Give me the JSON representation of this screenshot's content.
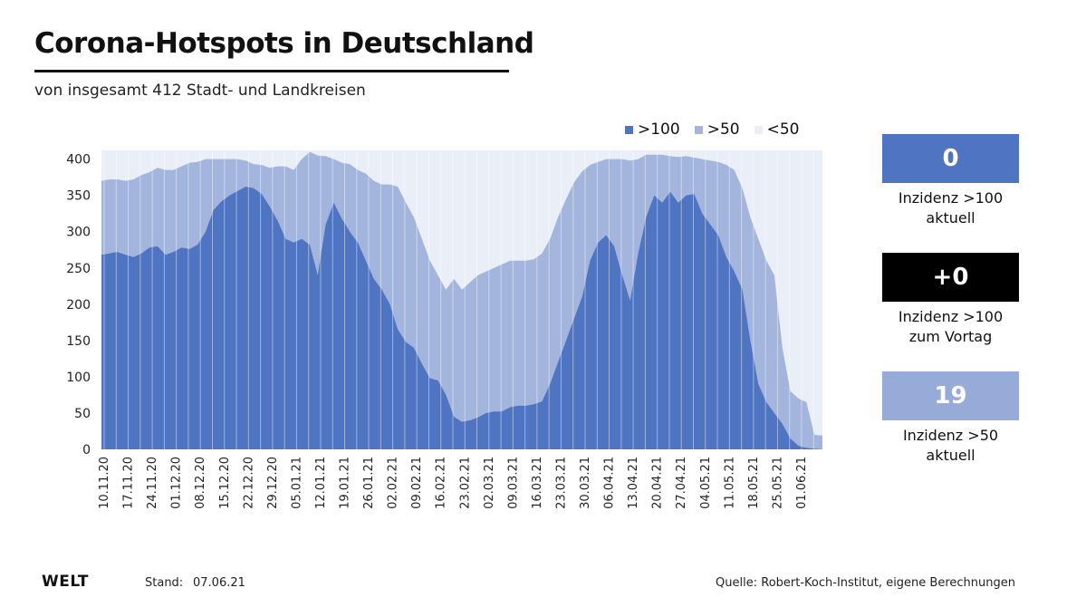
{
  "title": "Corona-Hotspots in Deutschland",
  "subtitle": "von insgesamt 412 Stadt- und Landkreisen",
  "legend": [
    {
      "label": ">100",
      "color": "#4f74c2"
    },
    {
      "label": ">50",
      "color": "#a3b5dd"
    },
    {
      "label": "<50",
      "color": "#eaeef6"
    }
  ],
  "kpis": [
    {
      "value": "0",
      "line1": "Inzidenz >100",
      "line2": "aktuell",
      "color": "#4f74c2"
    },
    {
      "value": "+0",
      "line1": "Inzidenz >100",
      "line2": "zum Vortag",
      "color": "#000000"
    },
    {
      "value": "19",
      "line1": "Inzidenz >50",
      "line2": "aktuell",
      "color": "#97abd9"
    }
  ],
  "footer": {
    "logo": "WELT",
    "stand_label": "Stand:",
    "stand_date": "07.06.21",
    "source": "Quelle: Robert-Koch-Institut, eigene Berechnungen"
  },
  "chart_data": {
    "type": "area",
    "stacked": false,
    "title": "Corona-Hotspots in Deutschland",
    "subtitle": "von insgesamt 412 Stadt- und Landkreisen",
    "ylim": [
      0,
      412
    ],
    "yticks": [
      0,
      50,
      100,
      150,
      200,
      250,
      300,
      350,
      400
    ],
    "grid": "vertical",
    "legend_position": "top-right",
    "total": 412,
    "x_tick_labels": [
      "10.11.20",
      "17.11.20",
      "24.11.20",
      "01.12.20",
      "08.12.20",
      "15.12.20",
      "22.12.20",
      "29.12.20",
      "05.01.21",
      "12.01.21",
      "19.01.21",
      "26.01.21",
      "02.02.21",
      "09.02.21",
      "16.02.21",
      "23.02.21",
      "02.03.21",
      "09.03.21",
      "16.03.21",
      "23.03.21",
      "30.03.21",
      "06.04.21",
      "13.04.21",
      "20.04.21",
      "27.04.21",
      "04.05.21",
      "11.05.21",
      "18.05.21",
      "25.05.21",
      "01.06.21"
    ],
    "series": [
      {
        "name": ">100",
        "color": "#4f74c2",
        "values": [
          268,
          270,
          272,
          268,
          265,
          270,
          278,
          280,
          268,
          272,
          278,
          276,
          282,
          300,
          330,
          342,
          350,
          356,
          362,
          360,
          352,
          335,
          315,
          290,
          285,
          290,
          282,
          240,
          310,
          340,
          318,
          300,
          285,
          260,
          235,
          220,
          200,
          165,
          148,
          140,
          118,
          98,
          95,
          75,
          45,
          38,
          40,
          44,
          50,
          52,
          52,
          58,
          60,
          60,
          62,
          66,
          90,
          120,
          150,
          180,
          210,
          260,
          285,
          295,
          280,
          240,
          205,
          270,
          320,
          350,
          340,
          355,
          340,
          350,
          352,
          325,
          310,
          295,
          265,
          245,
          220,
          150,
          90,
          65,
          50,
          35,
          15,
          5,
          2,
          1,
          0
        ]
      },
      {
        "name": ">50",
        "color": "#a3b5dd",
        "values": [
          370,
          372,
          372,
          370,
          372,
          378,
          382,
          388,
          385,
          385,
          390,
          395,
          396,
          400,
          400,
          400,
          400,
          400,
          398,
          393,
          392,
          388,
          390,
          390,
          385,
          400,
          410,
          405,
          404,
          400,
          395,
          393,
          385,
          380,
          370,
          365,
          365,
          362,
          340,
          320,
          290,
          260,
          240,
          220,
          235,
          220,
          230,
          240,
          245,
          250,
          255,
          260,
          260,
          260,
          262,
          270,
          290,
          320,
          345,
          368,
          383,
          392,
          396,
          400,
          400,
          400,
          398,
          400,
          406,
          406,
          406,
          404,
          403,
          404,
          402,
          400,
          398,
          396,
          392,
          385,
          360,
          320,
          290,
          260,
          240,
          140,
          80,
          70,
          65,
          20,
          19
        ]
      }
    ]
  }
}
